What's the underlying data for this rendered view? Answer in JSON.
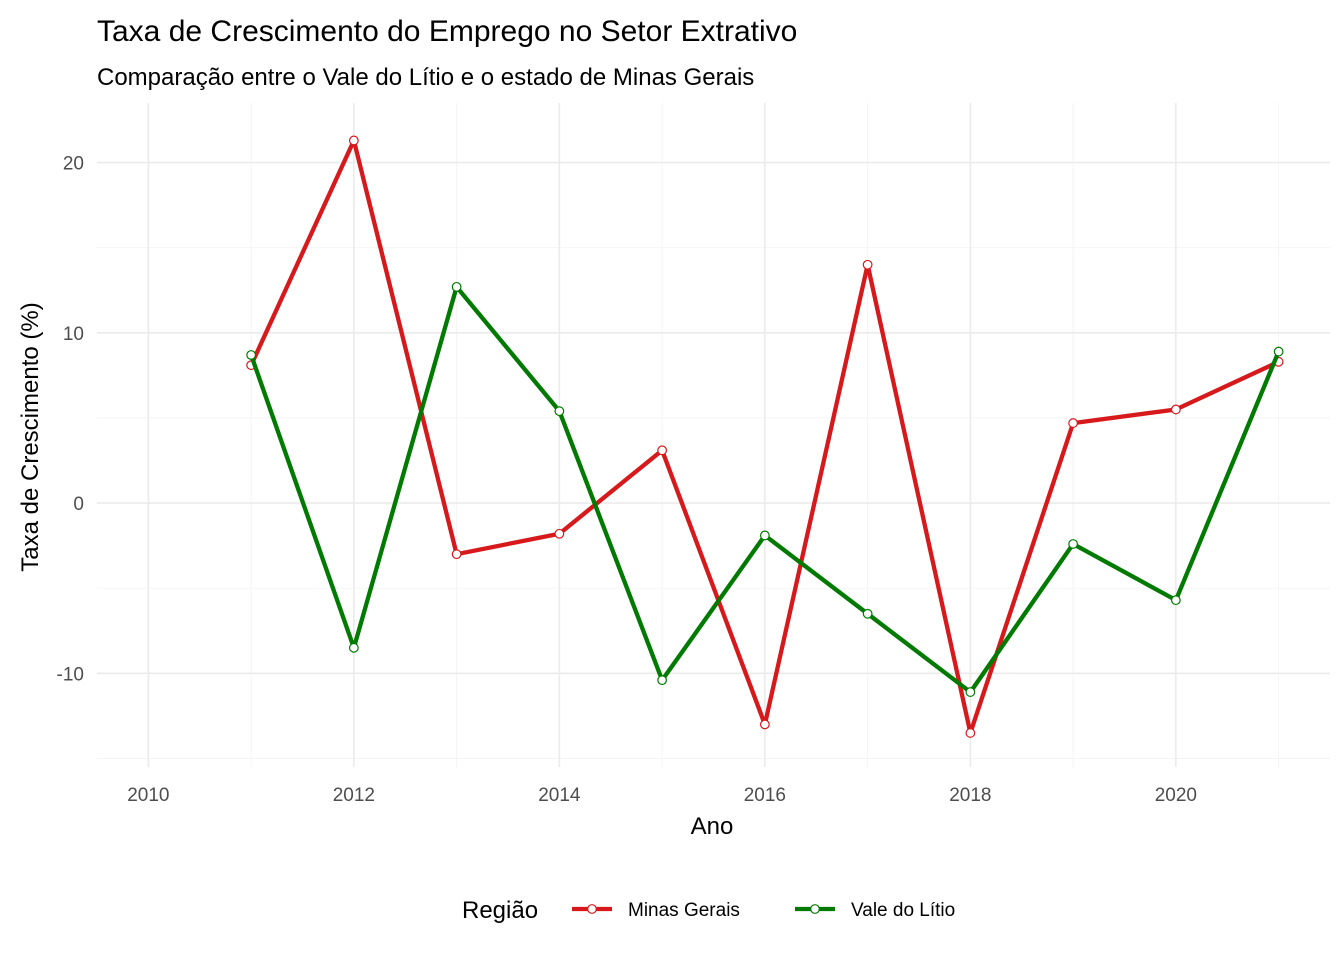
{
  "chart_data": {
    "type": "line",
    "title": "Taxa de Crescimento do Emprego no Setor Extrativo",
    "subtitle": "Comparação entre o Vale do Lítio e o estado de Minas Gerais",
    "xlabel": "Ano",
    "ylabel": "Taxa de Crescimento (%)",
    "xlim": [
      2009.5,
      2021.5
    ],
    "ylim": [
      -15.5,
      23.5
    ],
    "x_ticks": [
      2010,
      2012,
      2014,
      2016,
      2018,
      2020
    ],
    "y_ticks": [
      -10,
      0,
      10,
      20
    ],
    "grid": true,
    "legend": {
      "title": "Região",
      "position": "bottom"
    },
    "x": [
      2011,
      2012,
      2013,
      2014,
      2015,
      2016,
      2017,
      2018,
      2019,
      2020,
      2021
    ],
    "series": [
      {
        "name": "Minas Gerais",
        "color": "#d7191c",
        "values": [
          8.1,
          21.3,
          -3.0,
          -1.8,
          3.1,
          -13.0,
          14.0,
          -13.5,
          4.7,
          5.5,
          8.3
        ]
      },
      {
        "name": "Vale do Lítio",
        "color": "#007a00",
        "values": [
          8.7,
          -8.5,
          12.7,
          5.4,
          -10.4,
          -1.9,
          -6.5,
          -11.1,
          -2.4,
          -5.7,
          8.9
        ]
      }
    ]
  }
}
